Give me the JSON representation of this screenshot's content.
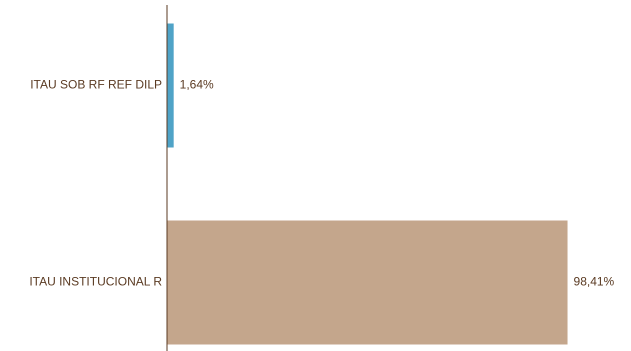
{
  "chart_data": {
    "type": "bar",
    "orientation": "horizontal",
    "categories": [
      "ITAU SOB RF REF DILP",
      "ITAU INSTITUCIONAL R"
    ],
    "values": [
      1.64,
      98.41
    ],
    "value_labels": [
      "1,64%",
      "98,41%"
    ],
    "colors": [
      "#4fa3c7",
      "#c4a68c"
    ],
    "xlim": [
      0,
      100
    ],
    "grid": false,
    "legend": "none",
    "axis_color": "#5a3a22",
    "text_color": "#5a3a22"
  }
}
